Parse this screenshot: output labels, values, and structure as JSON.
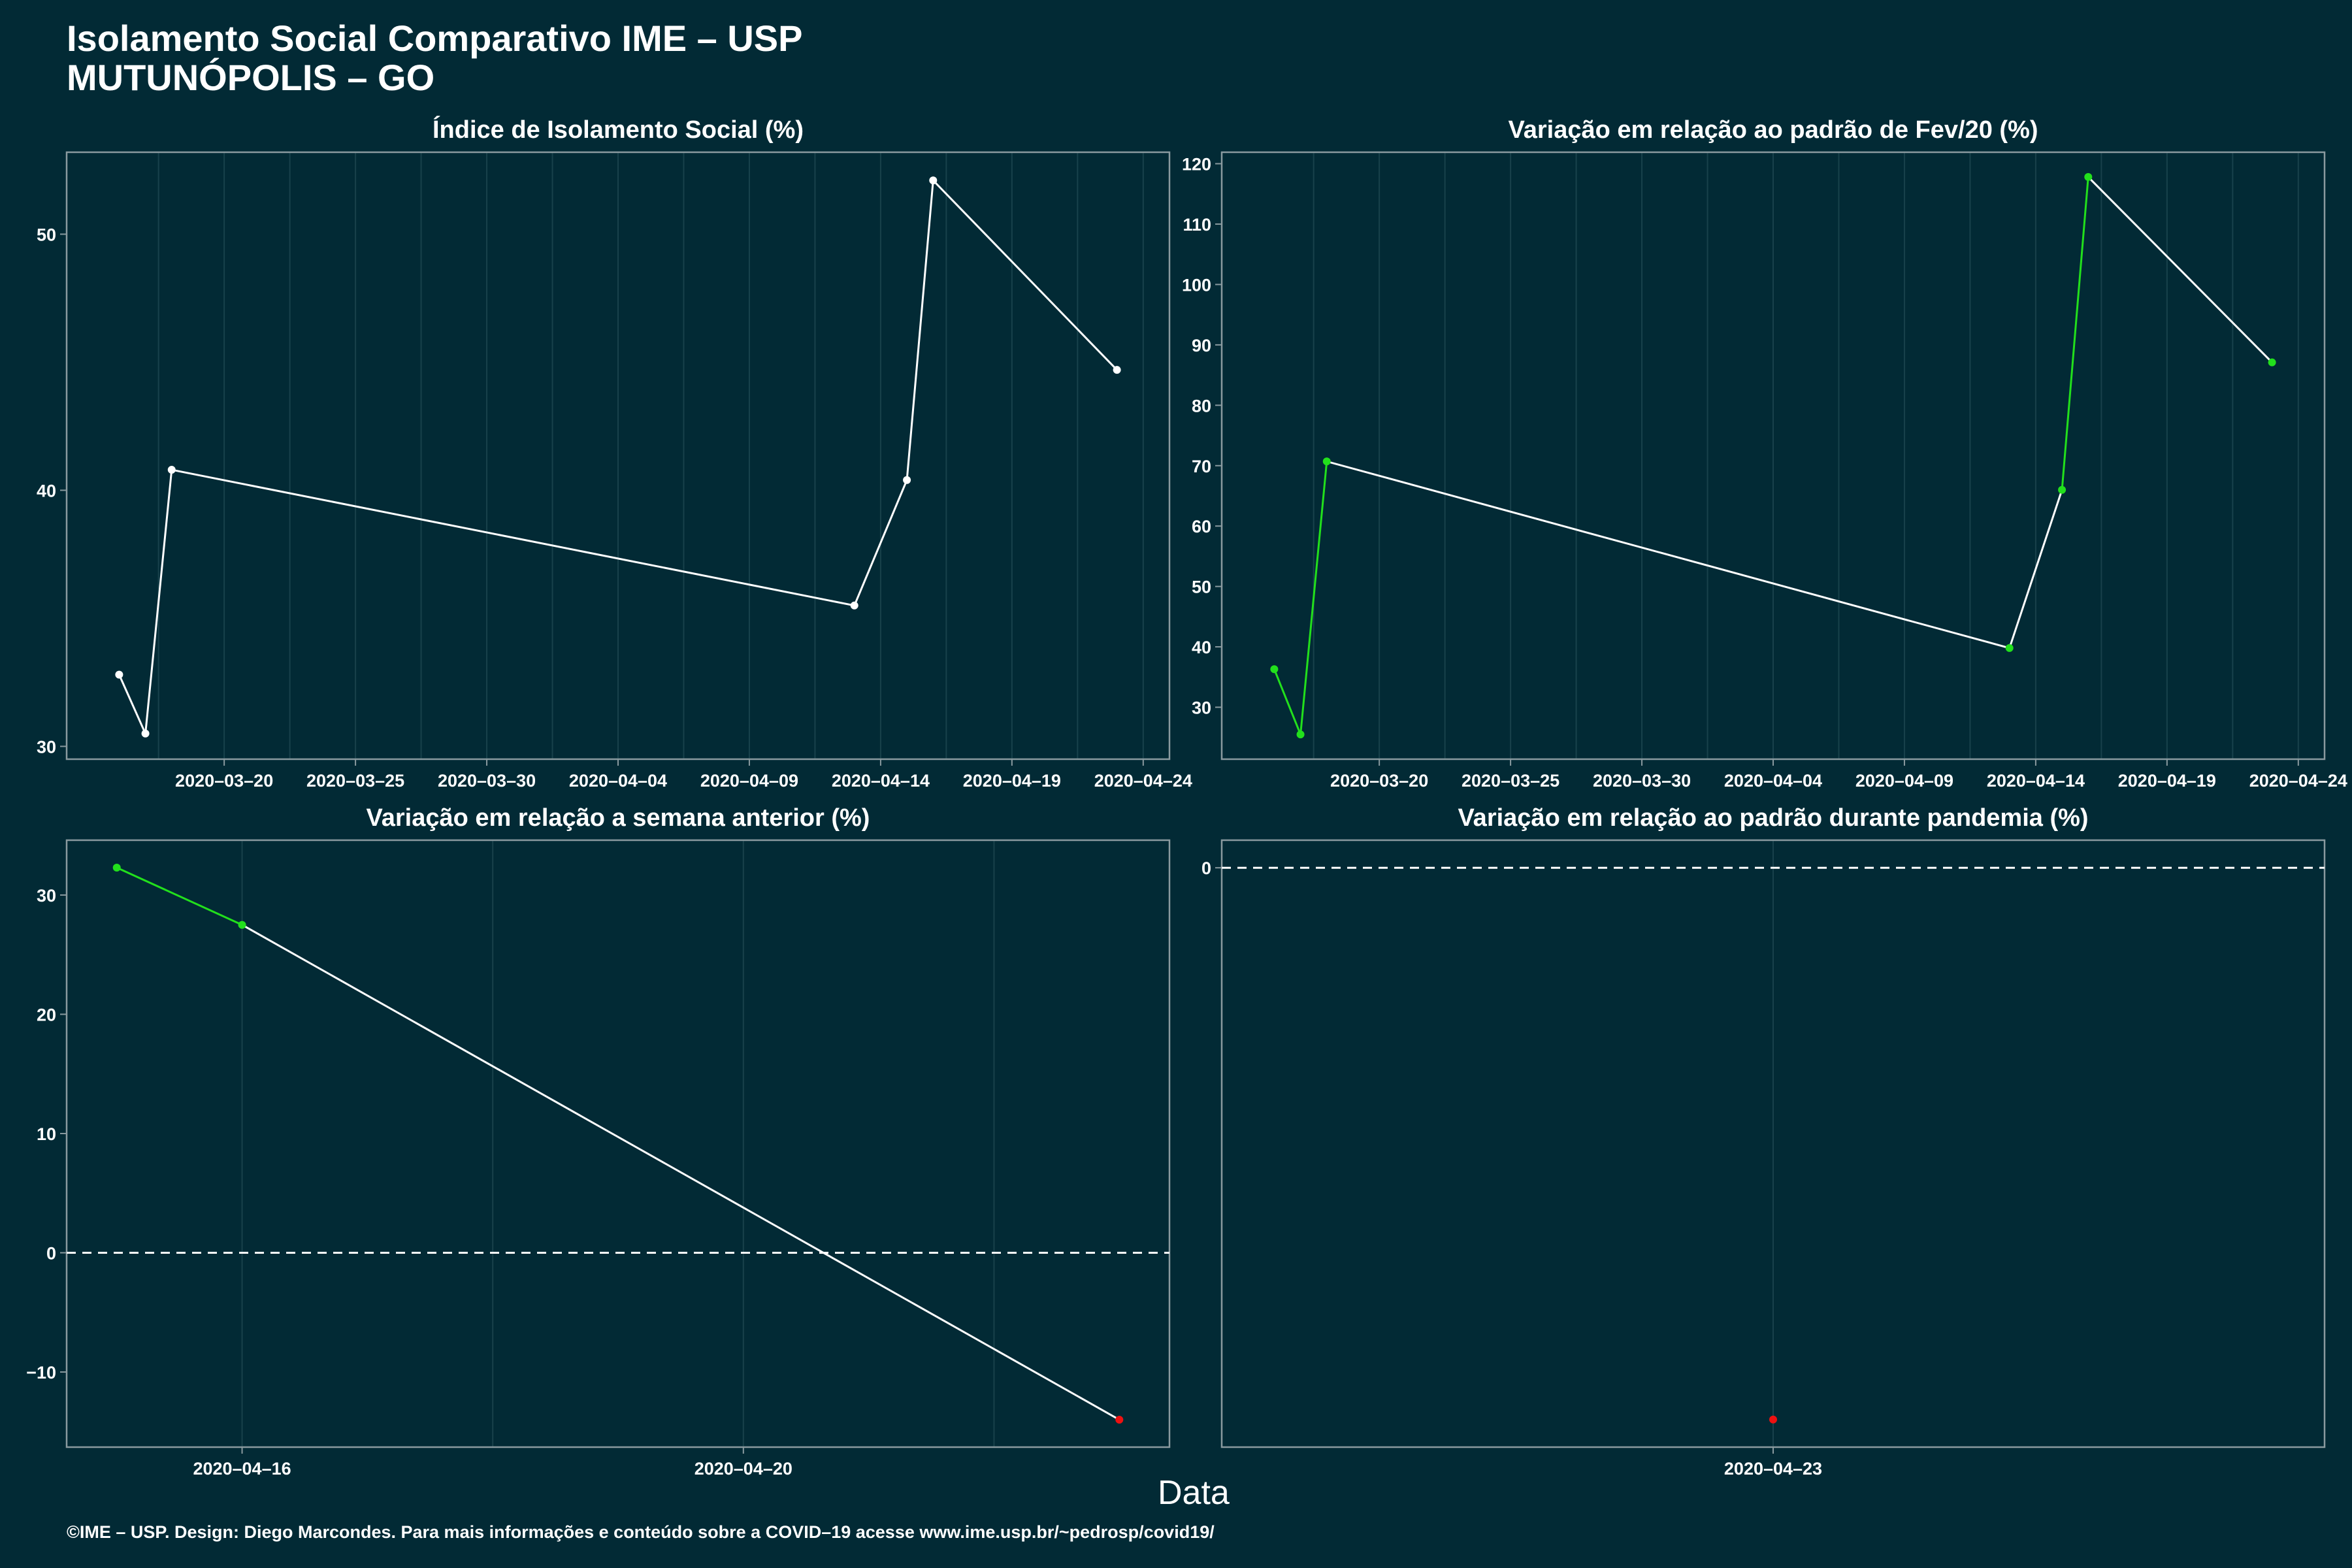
{
  "header": {
    "title_line1": "Isolamento Social Comparativo IME – USP",
    "title_line2": "MUTUNÓPOLIS – GO"
  },
  "x_axis_title": "Data",
  "footer": {
    "credit": "©IME – USP. Design: Diego Marcondes. Para mais informações e conteúdo sobre a COVID–19 acesse www.ime.usp.br/~pedrosp/covid19/"
  },
  "colors": {
    "background": "#022a35",
    "panel_border": "#8a9a9f",
    "grid": "#18414b",
    "line": "#ffffff",
    "increase": "#22e01c",
    "decrease": "#ee1111"
  },
  "chart_data": [
    {
      "type": "line",
      "title": "Índice de Isolamento Social (%)",
      "x": [
        "2020-03-16",
        "2020-03-17",
        "2020-03-18",
        "2020-04-13",
        "2020-04-15",
        "2020-04-16",
        "2020-04-23"
      ],
      "values": [
        32.8,
        30.5,
        40.8,
        35.5,
        40.4,
        52.1,
        44.7
      ],
      "point_color": "line",
      "segment_color": [
        "line",
        "line",
        "line",
        "line",
        "line",
        "line"
      ],
      "xticks": [
        "2020–03–20",
        "2020–03–25",
        "2020–03–30",
        "2020–04–04",
        "2020–04–09",
        "2020–04–14",
        "2020–04–19",
        "2020–04–24"
      ],
      "xtick_dates": [
        "2020-03-20",
        "2020-03-25",
        "2020-03-30",
        "2020-04-04",
        "2020-04-09",
        "2020-04-14",
        "2020-04-19",
        "2020-04-24"
      ],
      "xlim": [
        "2020-03-14",
        "2020-04-25"
      ],
      "ylim": [
        29.5,
        53.2
      ],
      "yticks": [
        30,
        40,
        50
      ],
      "hline": null,
      "grid": true
    },
    {
      "type": "line",
      "title": "Variação em relação ao padrão de Fev/20 (%)",
      "x": [
        "2020-03-16",
        "2020-03-17",
        "2020-03-18",
        "2020-04-13",
        "2020-04-15",
        "2020-04-16",
        "2020-04-23"
      ],
      "values": [
        36.3,
        25.5,
        70.7,
        39.8,
        66.0,
        117.8,
        87.1
      ],
      "point_color": "increase",
      "segment_color": [
        "increase",
        "increase",
        "line",
        "line",
        "increase",
        "line"
      ],
      "xticks": [
        "2020–03–20",
        "2020–03–25",
        "2020–03–30",
        "2020–04–04",
        "2020–04–09",
        "2020–04–14",
        "2020–04–19",
        "2020–04–24"
      ],
      "xtick_dates": [
        "2020-03-20",
        "2020-03-25",
        "2020-03-30",
        "2020-04-04",
        "2020-04-09",
        "2020-04-14",
        "2020-04-19",
        "2020-04-24"
      ],
      "xlim": [
        "2020-03-14",
        "2020-04-25"
      ],
      "ylim": [
        21.4,
        121.9
      ],
      "yticks": [
        30,
        40,
        50,
        60,
        70,
        80,
        90,
        100,
        110,
        120
      ],
      "hline": null,
      "grid": true
    },
    {
      "type": "line",
      "title": "Variação em relação a semana anterior (%)",
      "x": [
        "2020-04-15",
        "2020-04-16",
        "2020-04-23"
      ],
      "values": [
        32.3,
        27.5,
        -14.0
      ],
      "point_color": [
        "increase",
        "increase",
        "decrease"
      ],
      "segment_color": [
        "increase",
        "line"
      ],
      "xticks": [
        "2020–04–16",
        "2020–04–20"
      ],
      "xtick_dates": [
        "2020-04-16",
        "2020-04-20"
      ],
      "xlim": [
        "2020-04-14.6",
        "2020-04-23.4"
      ],
      "ylim": [
        -16.3,
        34.6
      ],
      "yticks": [
        -10,
        0,
        10,
        20,
        30
      ],
      "hline": 0,
      "grid": true
    },
    {
      "type": "line",
      "title": "Variação em relação ao padrão durante pandemia (%)",
      "x": [
        "2020-04-23"
      ],
      "values": [
        -14.0
      ],
      "point_color": [
        "decrease"
      ],
      "segment_color": [],
      "xticks": [
        "2020–04–23"
      ],
      "xtick_dates": [
        "2020-04-23"
      ],
      "xlim": [
        "2020-04-22.4",
        "2020-04-23.6"
      ],
      "ylim": [
        -14.7,
        0.7
      ],
      "yticks": [
        0
      ],
      "hline": 0,
      "grid": true
    }
  ]
}
